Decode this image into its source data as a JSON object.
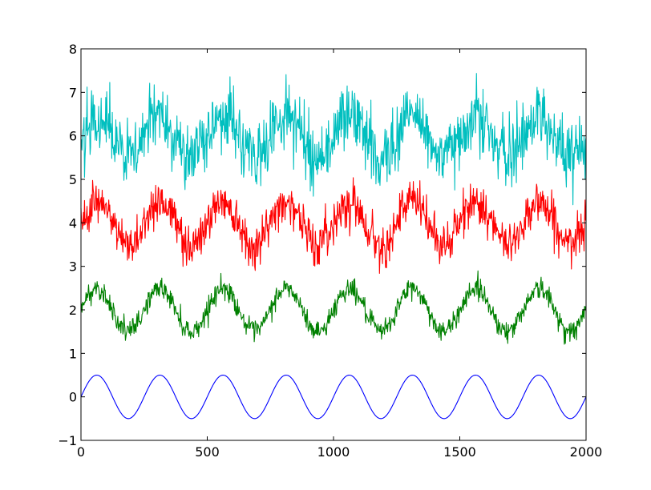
{
  "chart_data": {
    "type": "line",
    "title": "",
    "xlabel": "",
    "ylabel": "",
    "xlim": [
      0,
      2000
    ],
    "ylim": [
      -1,
      8
    ],
    "grid": false,
    "legend": "none",
    "x_ticks": [
      0,
      500,
      1000,
      1500,
      2000
    ],
    "x_tick_labels": [
      "0",
      "500",
      "1000",
      "1500",
      "2000"
    ],
    "y_ticks": [
      -1,
      0,
      1,
      2,
      3,
      4,
      5,
      6,
      7,
      8
    ],
    "y_tick_labels": [
      "−1",
      "0",
      "1",
      "2",
      "3",
      "4",
      "5",
      "6",
      "7",
      "8"
    ],
    "x_step": 2,
    "period": 250,
    "series": [
      {
        "color": "#0000ff",
        "offset": 0,
        "amplitude": 0.5,
        "noise": 0
      },
      {
        "color": "#008000",
        "offset": 2,
        "amplitude": 0.5,
        "noise": 0.12
      },
      {
        "color": "#ff0000",
        "offset": 4,
        "amplitude": 0.5,
        "noise": 0.25
      },
      {
        "color": "#00bfbf",
        "offset": 6,
        "amplitude": 0.5,
        "noise": 0.38
      }
    ]
  }
}
